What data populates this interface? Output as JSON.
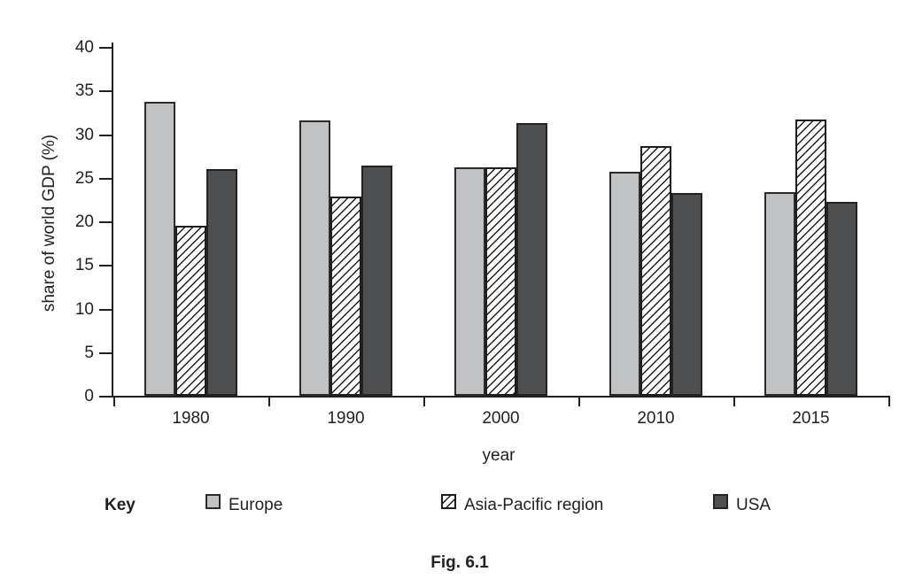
{
  "figure": {
    "key_label": "Key",
    "caption": "Fig. 6.1"
  },
  "chart_data": {
    "type": "bar",
    "title": "",
    "xlabel": "year",
    "ylabel": "share of world GDP (%)",
    "ylim": [
      0,
      40
    ],
    "yticks": [
      0,
      5,
      10,
      15,
      20,
      25,
      30,
      35,
      40
    ],
    "grid": false,
    "legend_position": "below",
    "categories": [
      "1980",
      "1990",
      "2000",
      "2010",
      "2015"
    ],
    "series": [
      {
        "name": "Europe",
        "style": "solid-light-gray",
        "values": [
          33.7,
          31.6,
          26.2,
          25.7,
          23.3
        ]
      },
      {
        "name": "Asia-Pacific region",
        "style": "diagonal-hatch",
        "values": [
          19.5,
          22.8,
          26.2,
          28.6,
          31.7
        ]
      },
      {
        "name": "USA",
        "style": "solid-dark-gray",
        "values": [
          26.0,
          26.4,
          31.3,
          23.2,
          22.2
        ]
      }
    ],
    "colors": {
      "europe_fill": "#c0c2c4",
      "usa_fill": "#4d4f51",
      "hatch_line": "#1c1c1c",
      "bar_border": "#2b2b2b",
      "axis": "#231f20",
      "text": "#231f20",
      "background": "#ffffff"
    }
  }
}
